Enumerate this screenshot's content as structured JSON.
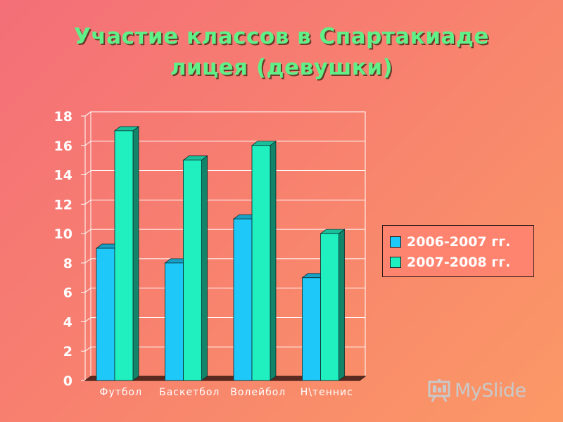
{
  "chart_data": {
    "type": "bar",
    "title": [
      "Участие классов в Спартакиаде",
      "лицея (девушки)"
    ],
    "categories": [
      "Футбол",
      "Баскетбол",
      "Волейбол",
      "Н\\теннис"
    ],
    "series": [
      {
        "name": "2006-2007 гг.",
        "values": [
          9,
          8,
          11,
          7
        ],
        "color": "#1ec8f8"
      },
      {
        "name": "2007-2008 гг.",
        "values": [
          17,
          15,
          16,
          10
        ],
        "color": "#20f0c0"
      }
    ],
    "yticks": [
      "0",
      "2",
      "4",
      "6",
      "8",
      "10",
      "12",
      "14",
      "16",
      "18"
    ],
    "ylim": [
      0,
      18
    ],
    "grid": true,
    "legend_position": "right"
  },
  "colors": {
    "title": "#5ff088",
    "wall": "#5a2a20",
    "gridline": "#ffffff"
  },
  "watermark": {
    "text": "MySlide",
    "icon": "presentation-board-icon"
  }
}
